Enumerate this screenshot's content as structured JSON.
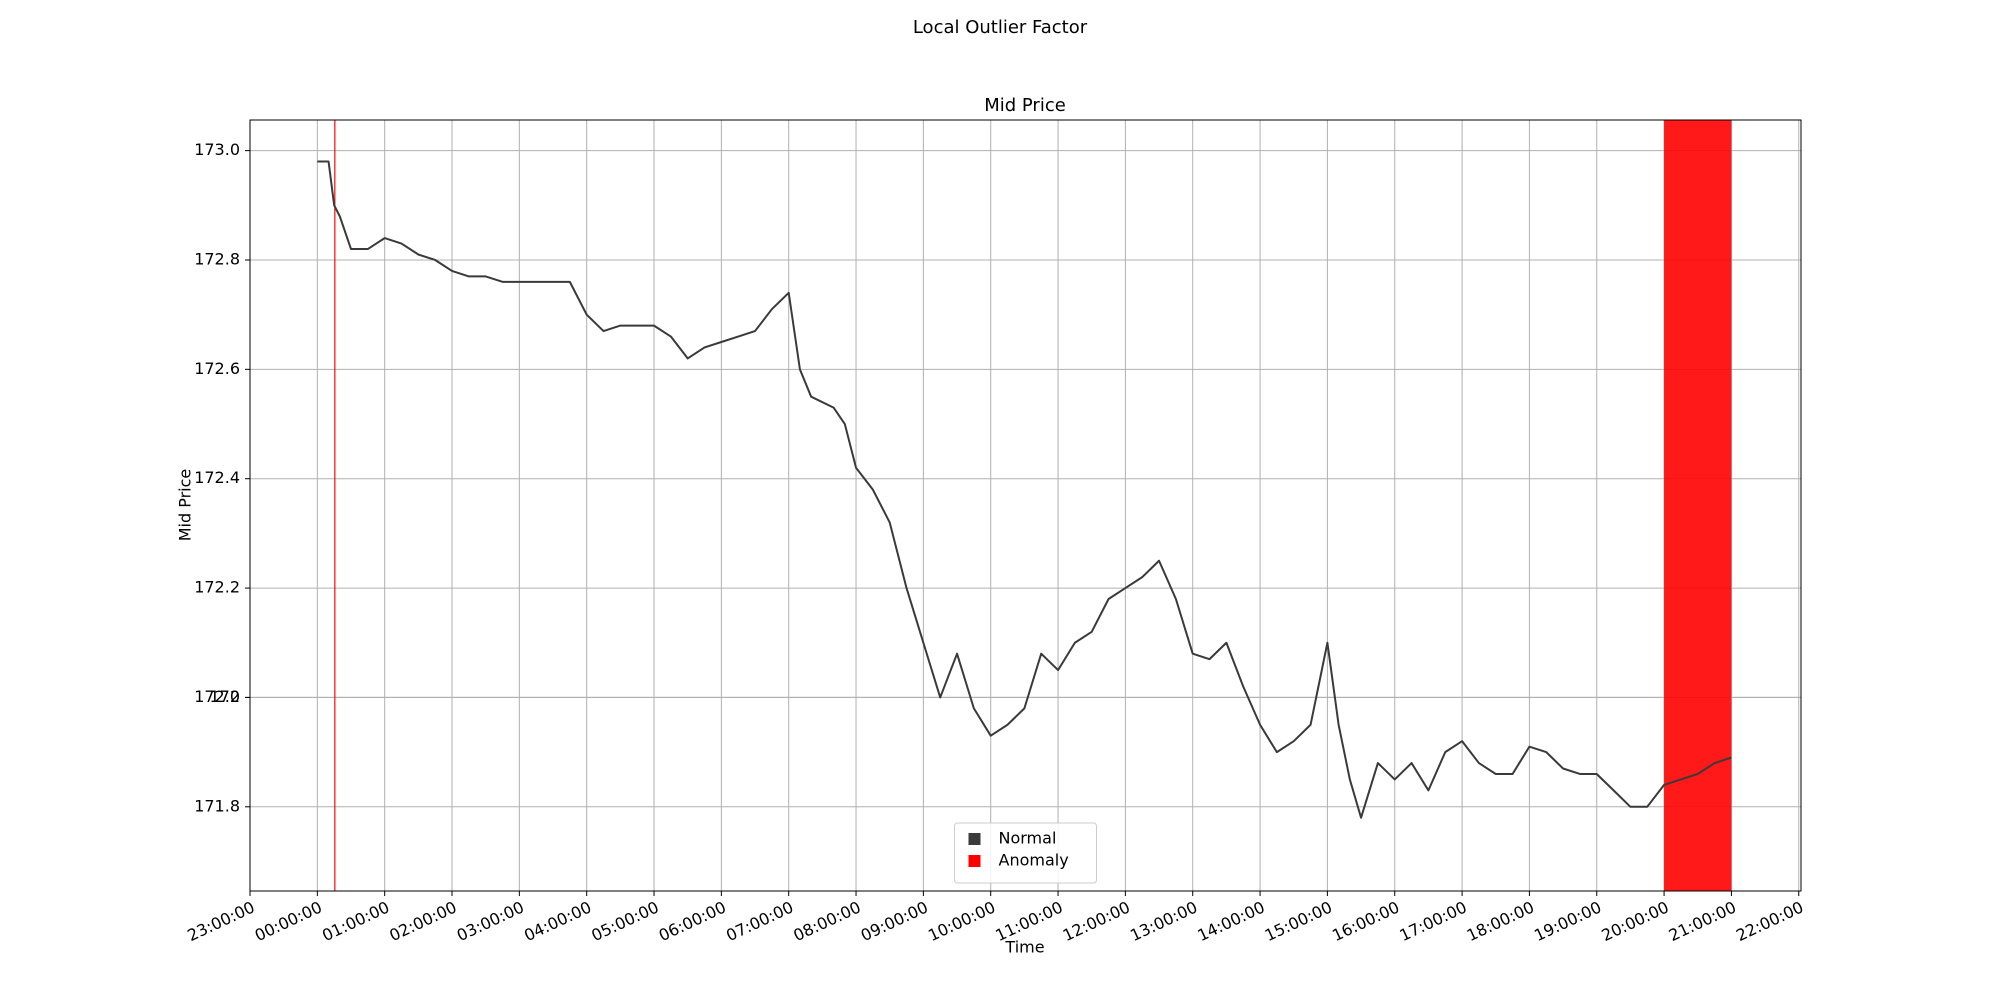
{
  "chart_data": {
    "type": "line",
    "title": "Local Outlier Factor",
    "subtitle": "Mid Price",
    "x_label": "Time",
    "y_label": "Mid Price",
    "x": [
      "00:00:00",
      "00:10:00",
      "00:15:00",
      "00:20:00",
      "00:30:00",
      "00:45:00",
      "01:00:00",
      "01:15:00",
      "01:30:00",
      "01:45:00",
      "02:00:00",
      "02:15:00",
      "02:30:00",
      "02:45:00",
      "03:00:00",
      "03:30:00",
      "03:45:00",
      "04:00:00",
      "04:15:00",
      "04:30:00",
      "04:45:00",
      "05:00:00",
      "05:15:00",
      "05:30:00",
      "05:45:00",
      "06:00:00",
      "06:15:00",
      "06:30:00",
      "06:45:00",
      "07:00:00",
      "07:10:00",
      "07:20:00",
      "07:40:00",
      "07:50:00",
      "08:00:00",
      "08:15:00",
      "08:30:00",
      "08:45:00",
      "09:00:00",
      "09:15:00",
      "09:30:00",
      "09:45:00",
      "10:00:00",
      "10:15:00",
      "10:30:00",
      "10:45:00",
      "11:00:00",
      "11:15:00",
      "11:30:00",
      "11:45:00",
      "12:00:00",
      "12:15:00",
      "12:30:00",
      "12:45:00",
      "13:00:00",
      "13:15:00",
      "13:30:00",
      "13:45:00",
      "14:00:00",
      "14:15:00",
      "14:30:00",
      "14:45:00",
      "15:00:00",
      "15:10:00",
      "15:20:00",
      "15:30:00",
      "15:45:00",
      "16:00:00",
      "16:15:00",
      "16:30:00",
      "16:45:00",
      "17:00:00",
      "17:15:00",
      "17:30:00",
      "17:45:00",
      "18:00:00",
      "18:15:00",
      "18:30:00",
      "18:45:00",
      "19:00:00",
      "19:15:00",
      "19:30:00",
      "19:45:00",
      "20:00:00",
      "20:15:00",
      "20:30:00",
      "20:45:00",
      "21:00:00"
    ],
    "series": [
      {
        "name": "Normal",
        "color": "#3a3a3a",
        "values": [
          172.98,
          172.98,
          172.9,
          172.88,
          172.82,
          172.82,
          172.84,
          172.83,
          172.81,
          172.8,
          172.78,
          172.77,
          172.77,
          172.76,
          172.76,
          172.76,
          172.76,
          172.7,
          172.67,
          172.68,
          172.68,
          172.68,
          172.66,
          172.62,
          172.64,
          172.65,
          172.66,
          172.67,
          172.71,
          172.74,
          172.6,
          172.55,
          172.53,
          172.5,
          172.42,
          172.38,
          172.32,
          172.2,
          172.1,
          172.0,
          172.08,
          171.98,
          171.93,
          171.95,
          171.98,
          172.08,
          172.05,
          172.1,
          172.12,
          172.18,
          172.2,
          172.22,
          172.25,
          172.18,
          172.08,
          172.07,
          172.1,
          172.02,
          171.95,
          171.9,
          171.92,
          171.95,
          172.1,
          171.95,
          171.85,
          171.78,
          171.88,
          171.85,
          171.88,
          171.83,
          171.9,
          171.92,
          171.88,
          171.86,
          171.86,
          171.91,
          171.9,
          171.87,
          171.86,
          171.86,
          171.83,
          171.8,
          171.8,
          171.84,
          171.85,
          171.86,
          171.88,
          171.89
        ]
      }
    ],
    "anomalies": {
      "name": "Anomaly",
      "color": "#ff0000",
      "spans": [
        {
          "start": "00:15:00",
          "end": "00:16:00"
        },
        {
          "start": "20:00:00",
          "end": "21:00:00"
        }
      ]
    },
    "xlim": [
      "23:00:00",
      "22:02:00"
    ],
    "xticks": [
      "23:00:00",
      "00:00:00",
      "01:00:00",
      "02:00:00",
      "03:00:00",
      "04:00:00",
      "05:00:00",
      "06:00:00",
      "07:00:00",
      "08:00:00",
      "09:00:00",
      "10:00:00",
      "11:00:00",
      "12:00:00",
      "13:00:00",
      "14:00:00",
      "15:00:00",
      "16:00:00",
      "17:00:00",
      "18:00:00",
      "19:00:00",
      "20:00:00",
      "21:00:00",
      "22:00:00"
    ],
    "ylim": [
      171.646,
      173.056
    ],
    "yticks": [
      172.0,
      {
        "value": 173.0,
        "label": "173.0"
      },
      172.8,
      172.6,
      172.4,
      172.2,
      {
        "value": 172.0,
        "label": "172.0"
      },
      171.8
    ],
    "grid": true,
    "legend": "lower center"
  }
}
